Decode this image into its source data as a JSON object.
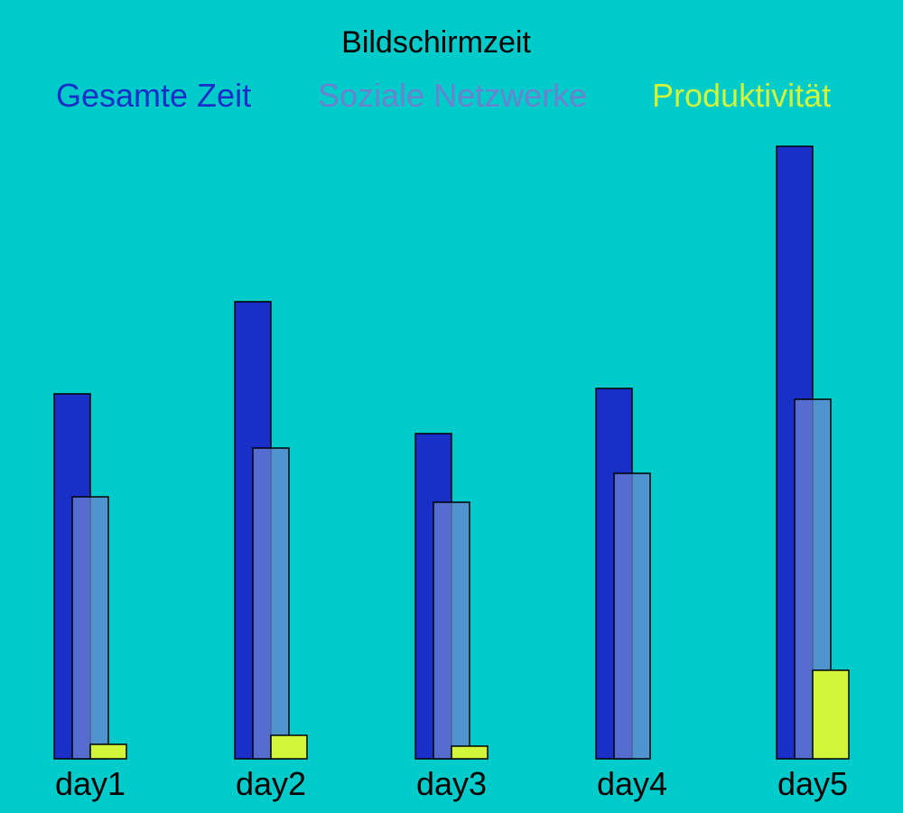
{
  "chart_data": {
    "type": "bar",
    "title": "Bildschirmzeit",
    "categories": [
      "day1",
      "day2",
      "day3",
      "day4",
      "day5"
    ],
    "series": [
      {
        "name": "Gesamte Zeit",
        "values": [
          202,
          253,
          180,
          205,
          339
        ]
      },
      {
        "name": "Soziale Netzwerke",
        "values": [
          145,
          172,
          142,
          158,
          199
        ]
      },
      {
        "name": "Produktivität",
        "values": [
          8,
          13,
          7,
          0,
          49
        ]
      }
    ],
    "ylim": [
      0,
      339
    ],
    "legend_position": "top",
    "grid": false,
    "axes_visible": false
  },
  "colors": {
    "background": "#00cbcb",
    "series": [
      "#1830c8",
      "#6a82d0",
      "#d0f53a"
    ],
    "series_opacity": [
      1,
      0.75,
      1
    ],
    "title": "#000000",
    "tick_labels": "#000000",
    "bar_stroke": "#000000"
  }
}
